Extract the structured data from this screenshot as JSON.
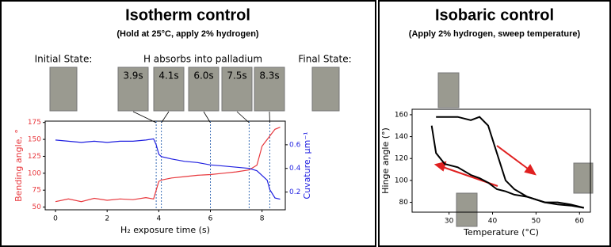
{
  "chart_data": [
    {
      "type": "line",
      "title": "Isotherm control",
      "subtitle": "(Hold at 25°C, apply 2% hydrogen)",
      "annotations": [
        "Initial State:",
        "H absorbs into palladium",
        "Final State:"
      ],
      "x_label": "H₂ exposure time (s)",
      "y_label": "Bending angle, °",
      "y2_label": "Cuvature, μm⁻¹",
      "x": [
        0,
        0.5,
        1,
        1.5,
        2,
        2.5,
        3,
        3.5,
        3.8,
        3.9,
        4.0,
        4.1,
        4.5,
        5,
        5.5,
        6,
        6.5,
        7,
        7.5,
        7.8,
        8.0,
        8.2,
        8.3,
        8.5,
        8.7
      ],
      "series": [
        {
          "color": "#e8383d",
          "values": [
            58,
            62,
            58,
            63,
            60,
            62,
            61,
            64,
            62,
            75,
            88,
            90,
            93,
            95,
            97,
            98,
            100,
            102,
            105,
            112,
            140,
            150,
            155,
            165,
            168
          ]
        },
        {
          "color": "#1f1fe0",
          "axis": "y2",
          "values": [
            0.64,
            0.63,
            0.62,
            0.63,
            0.62,
            0.63,
            0.63,
            0.64,
            0.65,
            0.6,
            0.52,
            0.5,
            0.48,
            0.46,
            0.45,
            0.43,
            0.42,
            0.41,
            0.4,
            0.38,
            0.34,
            0.3,
            0.22,
            0.15,
            0.14
          ]
        }
      ],
      "markers": {
        "values": [
          3.9,
          4.1,
          6.0,
          7.5,
          8.3
        ],
        "value_labels": [
          "3.9s",
          "4.1s",
          "6.0s",
          "7.5s",
          "8.3s"
        ]
      },
      "xlim": [
        -0.4,
        8.9
      ],
      "xticks": [
        0,
        2,
        4,
        6,
        8
      ],
      "ylim": [
        46,
        177
      ],
      "yticks": [
        50,
        75,
        100,
        125,
        150,
        175
      ],
      "y2lim": [
        0.05,
        0.8
      ],
      "y2ticks": [
        0.2,
        0.4,
        0.6
      ]
    },
    {
      "type": "line",
      "title": "Isobaric control",
      "subtitle": "(Apply 2% hydrogen, sweep temperature)",
      "x_label": "Temperature (°C)",
      "y_label": "Hinge angle (°)",
      "x": [
        26,
        27,
        29,
        32,
        35,
        37,
        39,
        41,
        43,
        45,
        48,
        52,
        55,
        58,
        61
      ],
      "series": [
        {
          "color": "#000000",
          "values": [
            null,
            158,
            158,
            158,
            155,
            158,
            150,
            125,
            100,
            92,
            85,
            80,
            80,
            78,
            75
          ]
        },
        {
          "color": "#000000",
          "values": [
            150,
            125,
            115,
            112,
            105,
            102,
            98,
            92,
            90,
            87,
            85,
            80,
            78,
            77,
            75
          ]
        }
      ],
      "xlim": [
        21.5,
        62.5
      ],
      "xticks": [
        30,
        40,
        50,
        60
      ],
      "ylim": [
        71,
        165
      ],
      "yticks": [
        80,
        100,
        120,
        140,
        160
      ]
    }
  ]
}
